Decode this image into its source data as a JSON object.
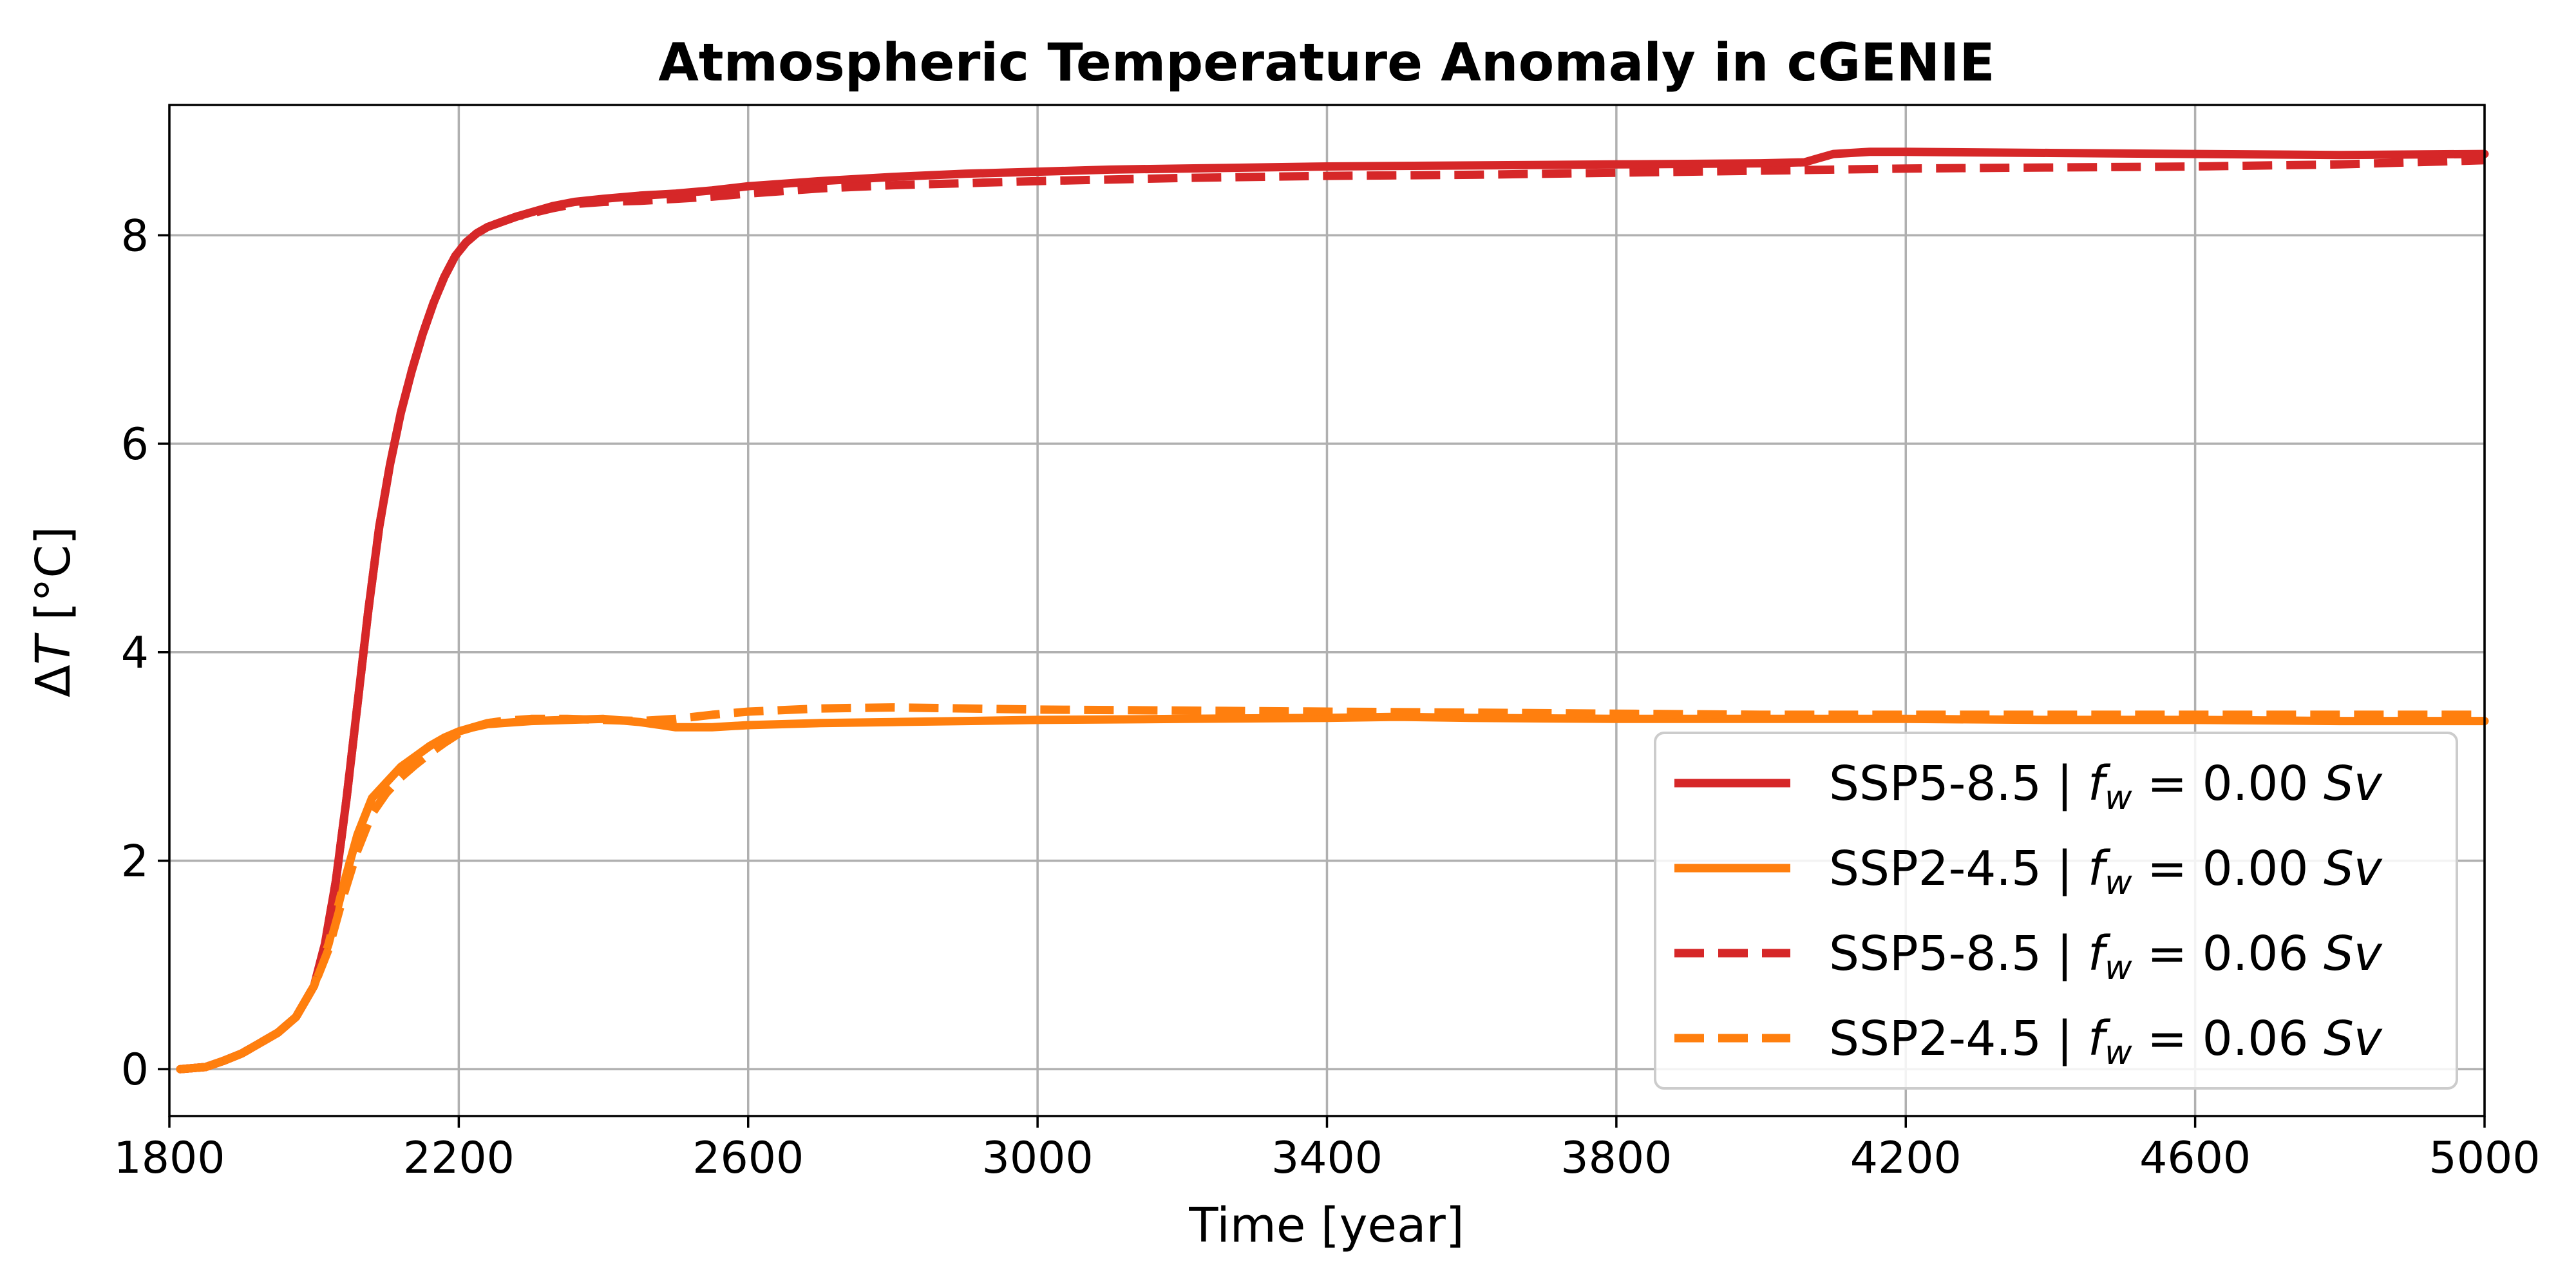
{
  "chart_data": {
    "type": "line",
    "title": "Atmospheric Temperature Anomaly in cGENIE",
    "xlabel": "Time [year]",
    "ylabel": "ΔT [°C]",
    "xlim": [
      1800,
      5000
    ],
    "ylim": [
      -0.45,
      9.25
    ],
    "xticks": [
      1800,
      2200,
      2600,
      3000,
      3400,
      3800,
      4200,
      4600,
      5000
    ],
    "yticks": [
      0,
      2,
      4,
      6,
      8
    ],
    "grid": true,
    "legend_position": "lower-right",
    "series": [
      {
        "name": "SSP5-8.5 | f_w = 0.00 Sv",
        "legend": {
          "scenario": "SSP5-8.5 | ",
          "var": "f",
          "sub": "w",
          "eq": " = 0.00 ",
          "unit": "Sv"
        },
        "color": "#d62728",
        "dashed": false,
        "x": [
          1815,
          1850,
          1875,
          1900,
          1925,
          1950,
          1975,
          2000,
          2015,
          2030,
          2045,
          2060,
          2075,
          2090,
          2105,
          2120,
          2135,
          2150,
          2165,
          2180,
          2195,
          2210,
          2225,
          2240,
          2260,
          2280,
          2300,
          2330,
          2360,
          2400,
          2450,
          2500,
          2550,
          2600,
          2700,
          2800,
          2900,
          3000,
          3100,
          3200,
          3400,
          3600,
          3800,
          4000,
          4060,
          4080,
          4100,
          4150,
          4200,
          4400,
          4600,
          4800,
          5000
        ],
        "y": [
          0,
          0.02,
          0.08,
          0.15,
          0.25,
          0.35,
          0.5,
          0.8,
          1.2,
          1.8,
          2.6,
          3.5,
          4.4,
          5.2,
          5.8,
          6.3,
          6.7,
          7.05,
          7.35,
          7.6,
          7.8,
          7.93,
          8.02,
          8.08,
          8.13,
          8.18,
          8.22,
          8.28,
          8.32,
          8.35,
          8.38,
          8.4,
          8.43,
          8.47,
          8.52,
          8.56,
          8.59,
          8.61,
          8.63,
          8.64,
          8.66,
          8.67,
          8.68,
          8.69,
          8.7,
          8.74,
          8.78,
          8.8,
          8.8,
          8.79,
          8.78,
          8.77,
          8.78
        ]
      },
      {
        "name": "SSP2-4.5 | f_w = 0.00 Sv",
        "legend": {
          "scenario": "SSP2-4.5 | ",
          "var": "f",
          "sub": "w",
          "eq": " = 0.00 ",
          "unit": "Sv"
        },
        "color": "#ff7f0e",
        "dashed": false,
        "x": [
          1815,
          1850,
          1875,
          1900,
          1925,
          1950,
          1975,
          2000,
          2020,
          2040,
          2060,
          2080,
          2100,
          2120,
          2140,
          2160,
          2180,
          2200,
          2220,
          2240,
          2260,
          2300,
          2350,
          2400,
          2450,
          2480,
          2500,
          2550,
          2600,
          2700,
          2800,
          2900,
          3000,
          3200,
          3400,
          3500,
          3600,
          3800,
          4000,
          4200,
          4400,
          4600,
          4800,
          5000
        ],
        "y": [
          0,
          0.02,
          0.08,
          0.15,
          0.25,
          0.35,
          0.5,
          0.8,
          1.2,
          1.75,
          2.25,
          2.6,
          2.75,
          2.9,
          3.0,
          3.1,
          3.18,
          3.24,
          3.28,
          3.31,
          3.32,
          3.34,
          3.35,
          3.36,
          3.33,
          3.3,
          3.28,
          3.28,
          3.3,
          3.32,
          3.33,
          3.34,
          3.35,
          3.36,
          3.37,
          3.38,
          3.37,
          3.36,
          3.36,
          3.36,
          3.35,
          3.35,
          3.34,
          3.34
        ]
      },
      {
        "name": "SSP5-8.5 | f_w = 0.06 Sv",
        "legend": {
          "scenario": "SSP5-8.5 | ",
          "var": "f",
          "sub": "w",
          "eq": " = 0.06 ",
          "unit": "Sv"
        },
        "color": "#d62728",
        "dashed": true,
        "x": [
          1815,
          1850,
          1875,
          1900,
          1925,
          1950,
          1975,
          2000,
          2015,
          2030,
          2045,
          2060,
          2075,
          2090,
          2105,
          2120,
          2135,
          2150,
          2165,
          2180,
          2195,
          2210,
          2225,
          2240,
          2260,
          2280,
          2300,
          2330,
          2360,
          2400,
          2450,
          2500,
          2550,
          2600,
          2700,
          2800,
          2900,
          3000,
          3200,
          3400,
          3600,
          3800,
          4000,
          4200,
          4400,
          4600,
          4800,
          5000
        ],
        "y": [
          0,
          0.02,
          0.08,
          0.15,
          0.25,
          0.35,
          0.5,
          0.8,
          1.2,
          1.8,
          2.6,
          3.5,
          4.4,
          5.2,
          5.8,
          6.3,
          6.7,
          7.05,
          7.35,
          7.6,
          7.8,
          7.93,
          8.02,
          8.08,
          8.13,
          8.18,
          8.21,
          8.26,
          8.3,
          8.32,
          8.33,
          8.35,
          8.37,
          8.4,
          8.45,
          8.48,
          8.5,
          8.52,
          8.55,
          8.57,
          8.58,
          8.6,
          8.62,
          8.64,
          8.65,
          8.66,
          8.68,
          8.72
        ]
      },
      {
        "name": "SSP2-4.5 | f_w = 0.06 Sv",
        "legend": {
          "scenario": "SSP2-4.5 | ",
          "var": "f",
          "sub": "w",
          "eq": " = 0.06 ",
          "unit": "Sv"
        },
        "color": "#ff7f0e",
        "dashed": true,
        "x": [
          1815,
          1850,
          1875,
          1900,
          1925,
          1950,
          1975,
          2000,
          2020,
          2040,
          2060,
          2080,
          2100,
          2120,
          2140,
          2160,
          2180,
          2200,
          2220,
          2240,
          2260,
          2300,
          2350,
          2400,
          2450,
          2500,
          2550,
          2600,
          2700,
          2800,
          2900,
          3000,
          3200,
          3400,
          3600,
          3800,
          4000,
          4200,
          4400,
          4600,
          4800,
          5000
        ],
        "y": [
          0,
          0.02,
          0.08,
          0.15,
          0.25,
          0.35,
          0.5,
          0.8,
          1.15,
          1.65,
          2.1,
          2.45,
          2.65,
          2.8,
          2.92,
          3.03,
          3.13,
          3.22,
          3.28,
          3.32,
          3.34,
          3.36,
          3.36,
          3.35,
          3.34,
          3.36,
          3.4,
          3.43,
          3.46,
          3.47,
          3.46,
          3.45,
          3.44,
          3.43,
          3.42,
          3.41,
          3.4,
          3.4,
          3.4,
          3.4,
          3.4,
          3.4
        ]
      }
    ]
  }
}
